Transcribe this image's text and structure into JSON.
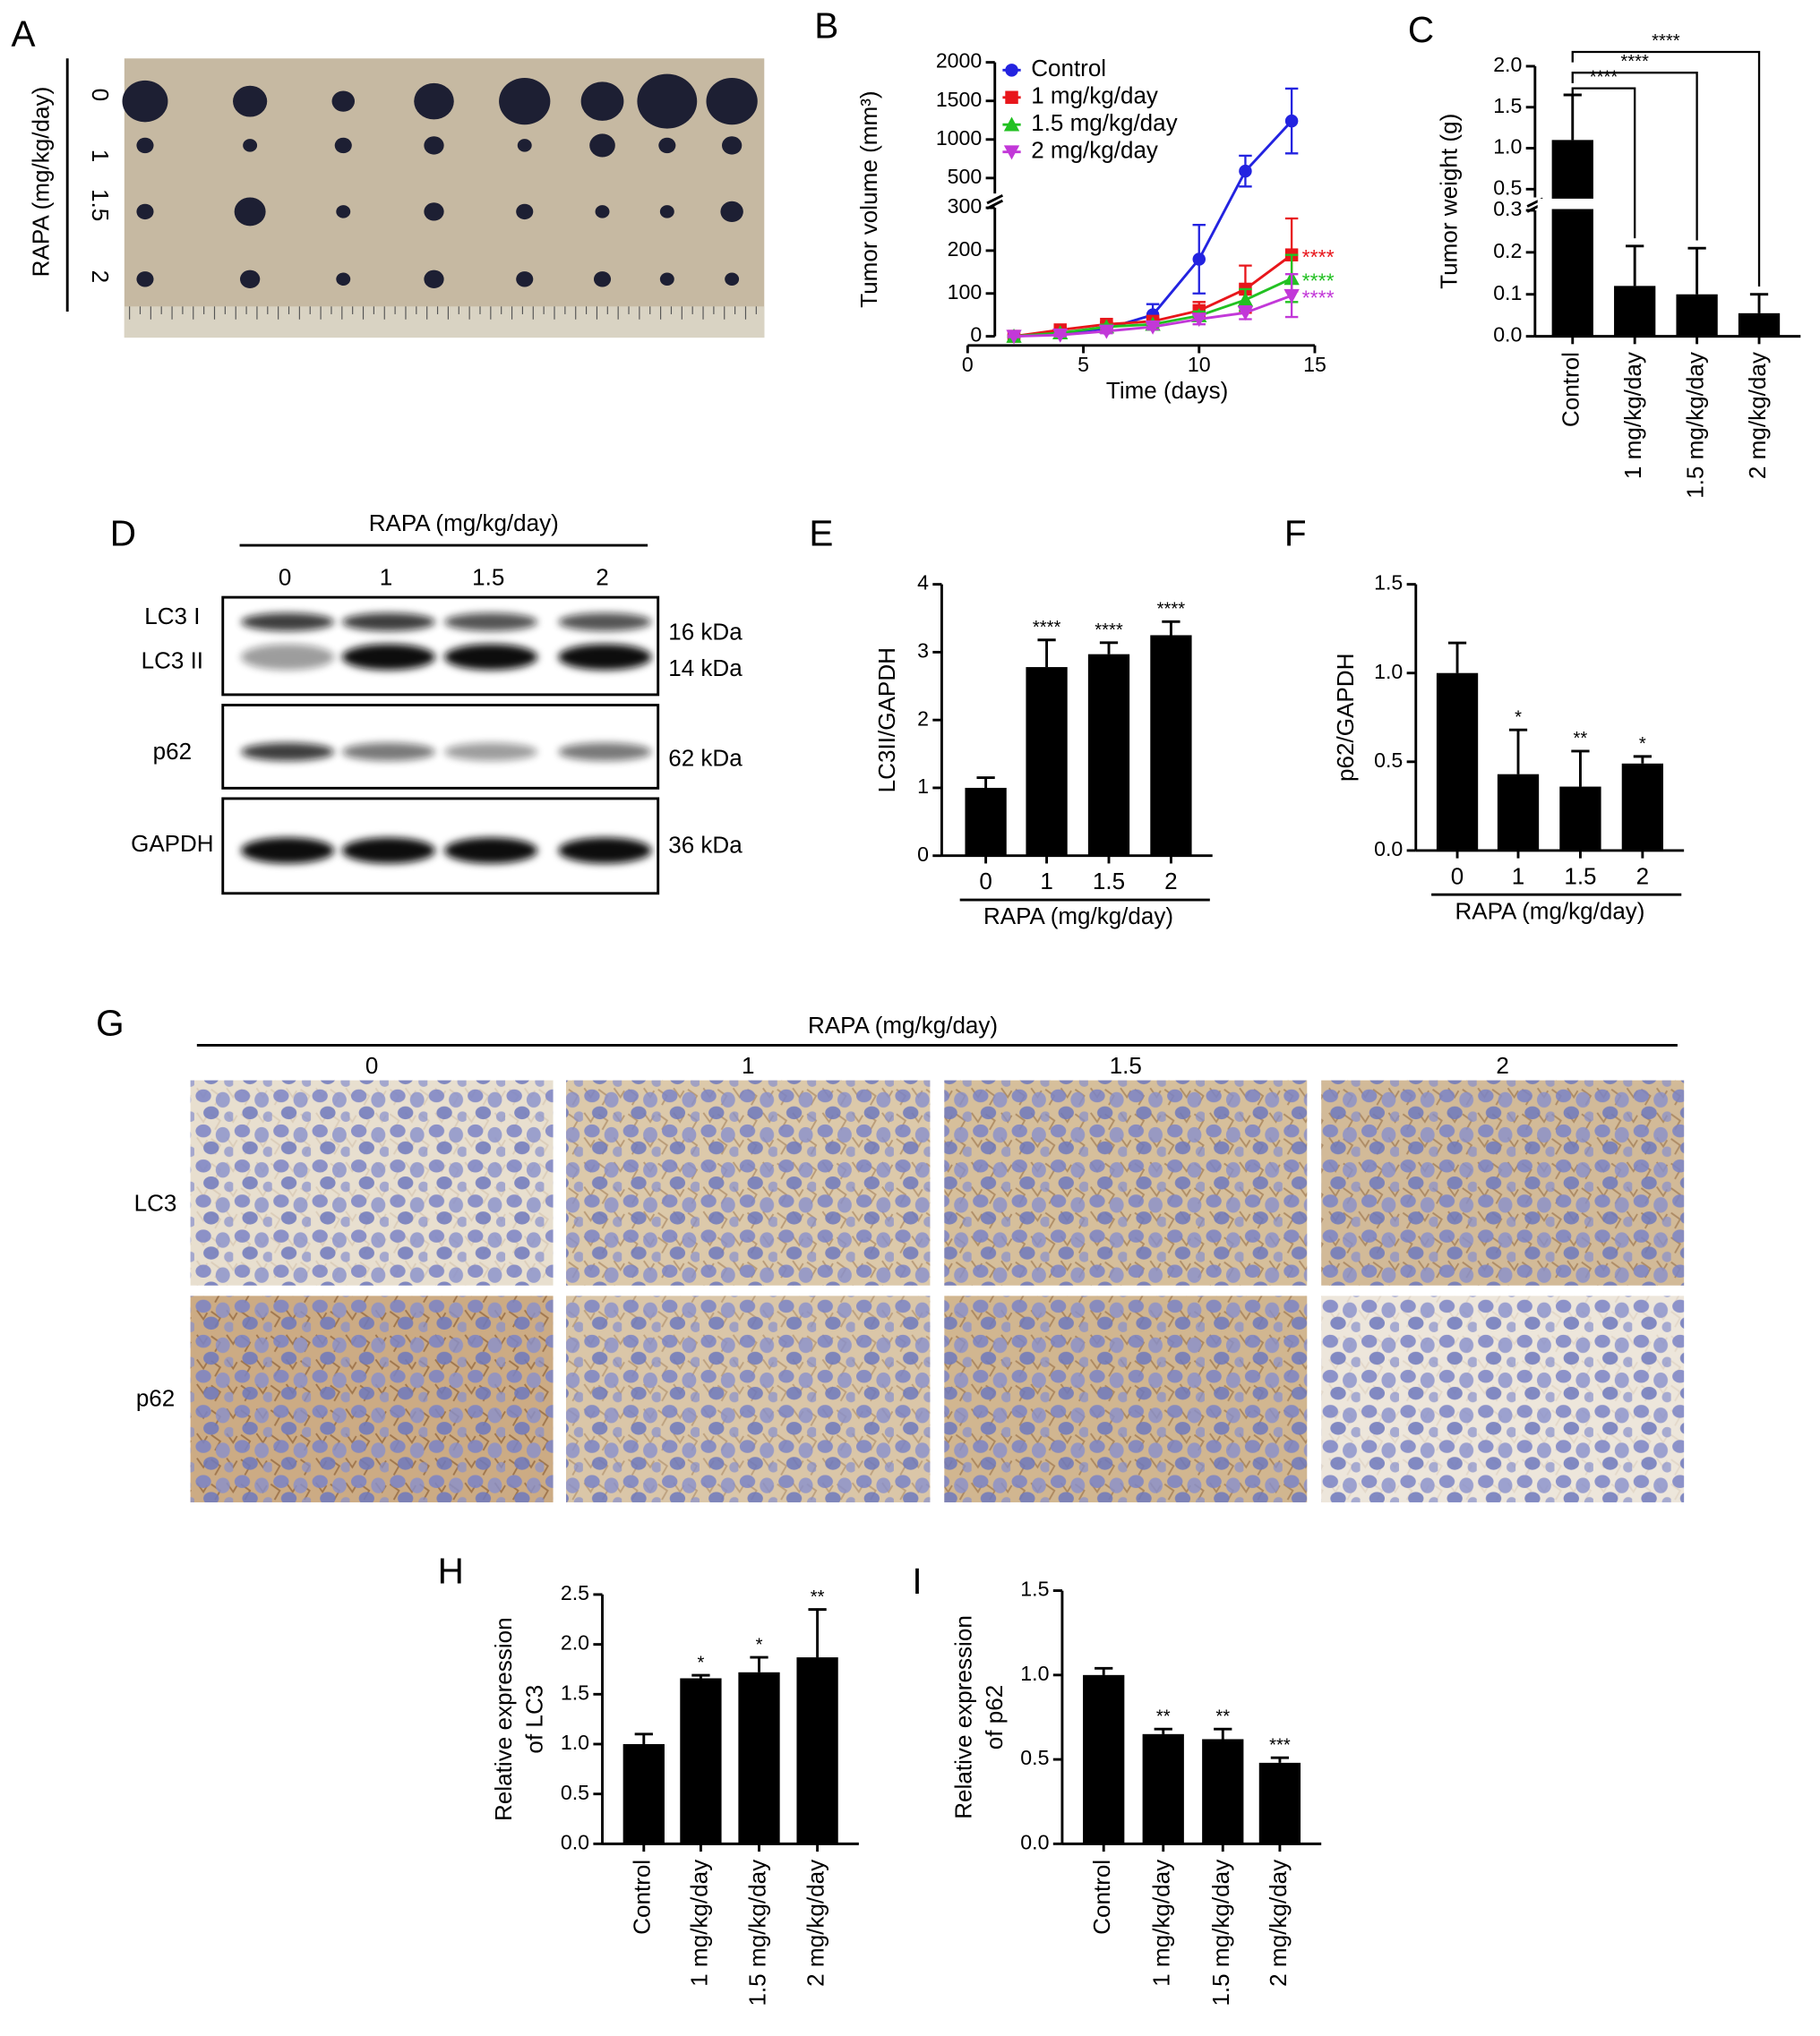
{
  "panel_labels": [
    "A",
    "B",
    "C",
    "D",
    "E",
    "F",
    "G",
    "H",
    "I"
  ],
  "tumor_photo": {
    "axis_label": "RAPA (mg/kg/day)",
    "rows": [
      "0",
      "1",
      "1.5",
      "2"
    ]
  },
  "western_blot": {
    "header": "RAPA (mg/kg/day)",
    "lanes": [
      "0",
      "1",
      "1.5",
      "2"
    ],
    "bands": [
      "LC3 I",
      "LC3 II",
      "p62",
      "GAPDH"
    ],
    "sizes": [
      "16 kDa",
      "14 kDa",
      "62 kDa",
      "36 kDa"
    ]
  },
  "ihc": {
    "header": "RAPA (mg/kg/day)",
    "columns": [
      "0",
      "1",
      "1.5",
      "2"
    ],
    "rows": [
      "LC3",
      "p62"
    ]
  },
  "chart_data": [
    {
      "type": "line",
      "xlabel": "Time (days)",
      "ylabel": "Tumor volume (mm³)",
      "x": [
        2,
        4,
        6,
        8,
        10,
        12,
        14
      ],
      "xlim": [
        0,
        15
      ],
      "xticks": [
        0,
        5,
        10,
        15
      ],
      "y_segments": [
        {
          "ylim": [
            0,
            300
          ],
          "yticks": [
            0,
            100,
            200,
            300
          ]
        },
        {
          "ylim": [
            300,
            2000
          ],
          "yticks": [
            500,
            1000,
            1500,
            2000
          ]
        }
      ],
      "legend": "upper left",
      "series": [
        {
          "name": "Control",
          "color": "#2323e0",
          "marker": "circle",
          "values": [
            0,
            8,
            18,
            50,
            180,
            590,
            1240
          ],
          "errors": [
            3,
            5,
            8,
            25,
            80,
            200,
            420
          ]
        },
        {
          "name": "1 mg/kg/day",
          "color": "#e8161b",
          "marker": "square",
          "values": [
            0,
            15,
            28,
            35,
            60,
            110,
            190
          ],
          "errors": [
            2,
            4,
            5,
            8,
            20,
            55,
            85
          ],
          "annotation": "****"
        },
        {
          "name": "1.5 mg/kg/day",
          "color": "#22c122",
          "marker": "triangle-up",
          "values": [
            0,
            8,
            22,
            28,
            48,
            85,
            135
          ],
          "errors": [
            2,
            4,
            5,
            6,
            10,
            25,
            55
          ],
          "annotation": "****"
        },
        {
          "name": "2 mg/kg/day",
          "color": "#c238d8",
          "marker": "triangle-down",
          "values": [
            0,
            3,
            12,
            22,
            40,
            55,
            95
          ],
          "errors": [
            2,
            3,
            5,
            6,
            12,
            15,
            50
          ],
          "annotation": "****"
        }
      ]
    },
    {
      "type": "bar",
      "ylabel": "Tumor weight (g)",
      "color": "#000000",
      "categories": [
        "Control",
        "1 mg/kg/day",
        "1.5 mg/kg/day",
        "2 mg/kg/day"
      ],
      "values": [
        1.1,
        0.12,
        0.1,
        0.055
      ],
      "errors": [
        0.55,
        0.095,
        0.11,
        0.045
      ],
      "y_segments": [
        {
          "ylim": [
            0,
            0.3
          ],
          "yticks": [
            {
              "value": 0,
              "label": "0.0"
            },
            0.1,
            0.2,
            0.3
          ]
        },
        {
          "ylim": [
            0.4,
            2.0
          ],
          "yticks": [
            0.5,
            {
              "value": 1,
              "label": "1.0"
            },
            1.5,
            {
              "value": 2,
              "label": "2.0"
            }
          ]
        }
      ],
      "significance_brackets": [
        null,
        "****",
        "****",
        "****"
      ]
    },
    {
      "type": "bar",
      "ylabel": "LC3II/GAPDH",
      "xlabel": "RAPA (mg/kg/day)",
      "color": "#000000",
      "categories": [
        "0",
        "1",
        "1.5",
        "2"
      ],
      "values": [
        1.0,
        2.78,
        2.97,
        3.25
      ],
      "errors": [
        0.15,
        0.4,
        0.17,
        0.2
      ],
      "ylim": [
        0,
        4
      ],
      "yticks": [
        0,
        1,
        2,
        3,
        4
      ],
      "significance": [
        null,
        "****",
        "****",
        "****"
      ]
    },
    {
      "type": "bar",
      "ylabel": "p62/GAPDH",
      "xlabel": "RAPA (mg/kg/day)",
      "color": "#000000",
      "categories": [
        "0",
        "1",
        "1.5",
        "2"
      ],
      "values": [
        1.0,
        0.43,
        0.36,
        0.49
      ],
      "errors": [
        0.17,
        0.25,
        0.2,
        0.04
      ],
      "ylim": [
        0,
        1.5
      ],
      "yticks": [
        {
          "value": 0,
          "label": "0.0"
        },
        0.5,
        {
          "value": 1,
          "label": "1.0"
        },
        1.5
      ],
      "significance": [
        null,
        "*",
        "**",
        "*"
      ]
    },
    {
      "type": "bar",
      "ylabel": [
        "Relative expression",
        "of LC3"
      ],
      "color": "#000000",
      "categories": [
        "Control",
        "1 mg/kg/day",
        "1.5 mg/kg/day",
        "2 mg/kg/day"
      ],
      "values": [
        1.0,
        1.66,
        1.72,
        1.87
      ],
      "errors": [
        0.1,
        0.03,
        0.15,
        0.48
      ],
      "ylim": [
        0,
        2.5
      ],
      "yticks": [
        {
          "value": 0,
          "label": "0.0"
        },
        0.5,
        {
          "value": 1,
          "label": "1.0"
        },
        1.5,
        {
          "value": 2,
          "label": "2.0"
        },
        2.5
      ],
      "significance": [
        null,
        "*",
        "*",
        "**"
      ]
    },
    {
      "type": "bar",
      "ylabel": [
        "Relative expression",
        "of p62"
      ],
      "color": "#000000",
      "categories": [
        "Control",
        "1 mg/kg/day",
        "1.5 mg/kg/day",
        "2 mg/kg/day"
      ],
      "values": [
        1.0,
        0.65,
        0.62,
        0.48
      ],
      "errors": [
        0.04,
        0.03,
        0.06,
        0.03
      ],
      "ylim": [
        0,
        1.5
      ],
      "yticks": [
        {
          "value": 0,
          "label": "0.0"
        },
        0.5,
        {
          "value": 1,
          "label": "1.0"
        },
        1.5
      ],
      "significance": [
        null,
        "**",
        "**",
        "***"
      ]
    }
  ]
}
